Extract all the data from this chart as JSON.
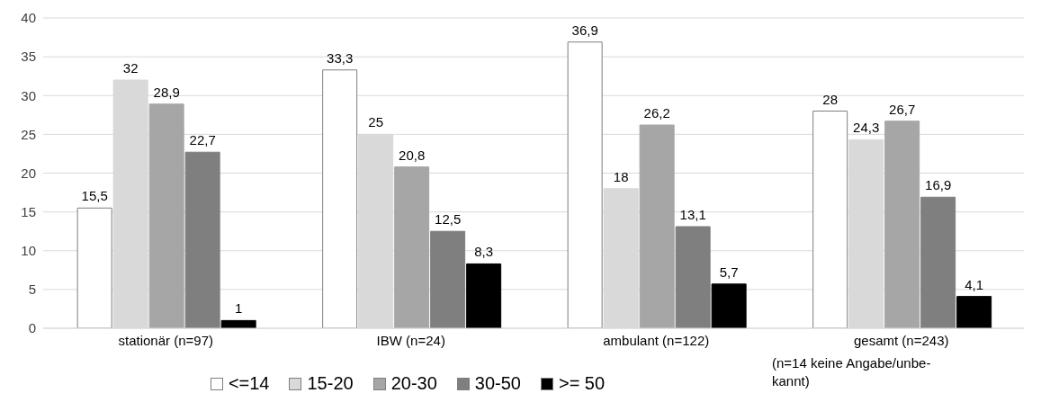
{
  "chart_data": {
    "type": "bar",
    "categories": [
      "stationär (n=97)",
      "IBW (n=24)",
      "ambulant (n=122)",
      "gesamt (n=243)"
    ],
    "series": [
      {
        "name": "<=14",
        "color": "#ffffff",
        "values": [
          15.5,
          33.3,
          36.9,
          28
        ],
        "value_labels": [
          "15,5",
          "33,3",
          "36,9",
          "28"
        ]
      },
      {
        "name": "15-20",
        "color": "#d9d9d9",
        "values": [
          32,
          25,
          18,
          24.3
        ],
        "value_labels": [
          "32",
          "25",
          "18",
          "24,3"
        ]
      },
      {
        "name": "20-30",
        "color": "#a6a6a6",
        "values": [
          28.9,
          20.8,
          26.2,
          26.7
        ],
        "value_labels": [
          "28,9",
          "20,8",
          "26,2",
          "26,7"
        ]
      },
      {
        "name": "30-50",
        "color": "#7f7f7f",
        "values": [
          22.7,
          12.5,
          13.1,
          16.9
        ],
        "value_labels": [
          "22,7",
          "12,5",
          "13,1",
          "16,9"
        ]
      },
      {
        "name": ">= 50",
        "color": "#000000",
        "values": [
          1,
          8.3,
          5.7,
          4.1
        ],
        "value_labels": [
          "1",
          "8,3",
          "5,7",
          "4,1"
        ]
      }
    ],
    "ylim": [
      0,
      40
    ],
    "yticks": [
      0,
      5,
      10,
      15,
      20,
      25,
      30,
      35,
      40
    ],
    "grid": "y",
    "legend": "bottom",
    "annotations": [
      "(n=14 keine Angabe/unbe-kannt)"
    ]
  }
}
